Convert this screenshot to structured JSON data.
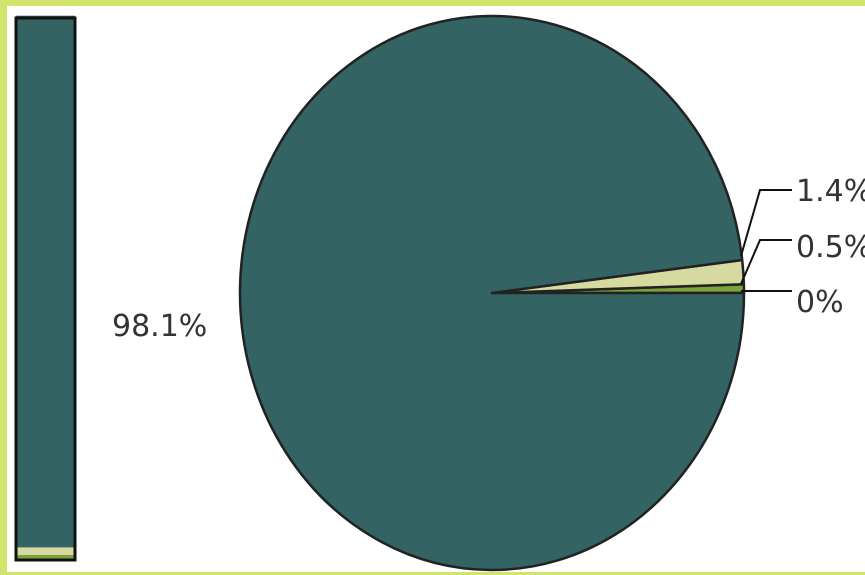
{
  "chart_data": {
    "type": "pie",
    "slices": [
      {
        "value": 98.1,
        "label": "98.1%",
        "color": "#336363"
      },
      {
        "value": 1.4,
        "label": "1.4%",
        "color": "#d6d9a0"
      },
      {
        "value": 0.5,
        "label": "0.5%",
        "color": "#7ca33a"
      },
      {
        "value": 0,
        "label": "0%",
        "color": "#1a1a1a"
      }
    ],
    "stacked_bar": {
      "orientation": "vertical",
      "values": [
        98.1,
        1.4,
        0.5,
        0
      ]
    },
    "frame_color": "#d3e46c",
    "outline_color": "#222222"
  }
}
